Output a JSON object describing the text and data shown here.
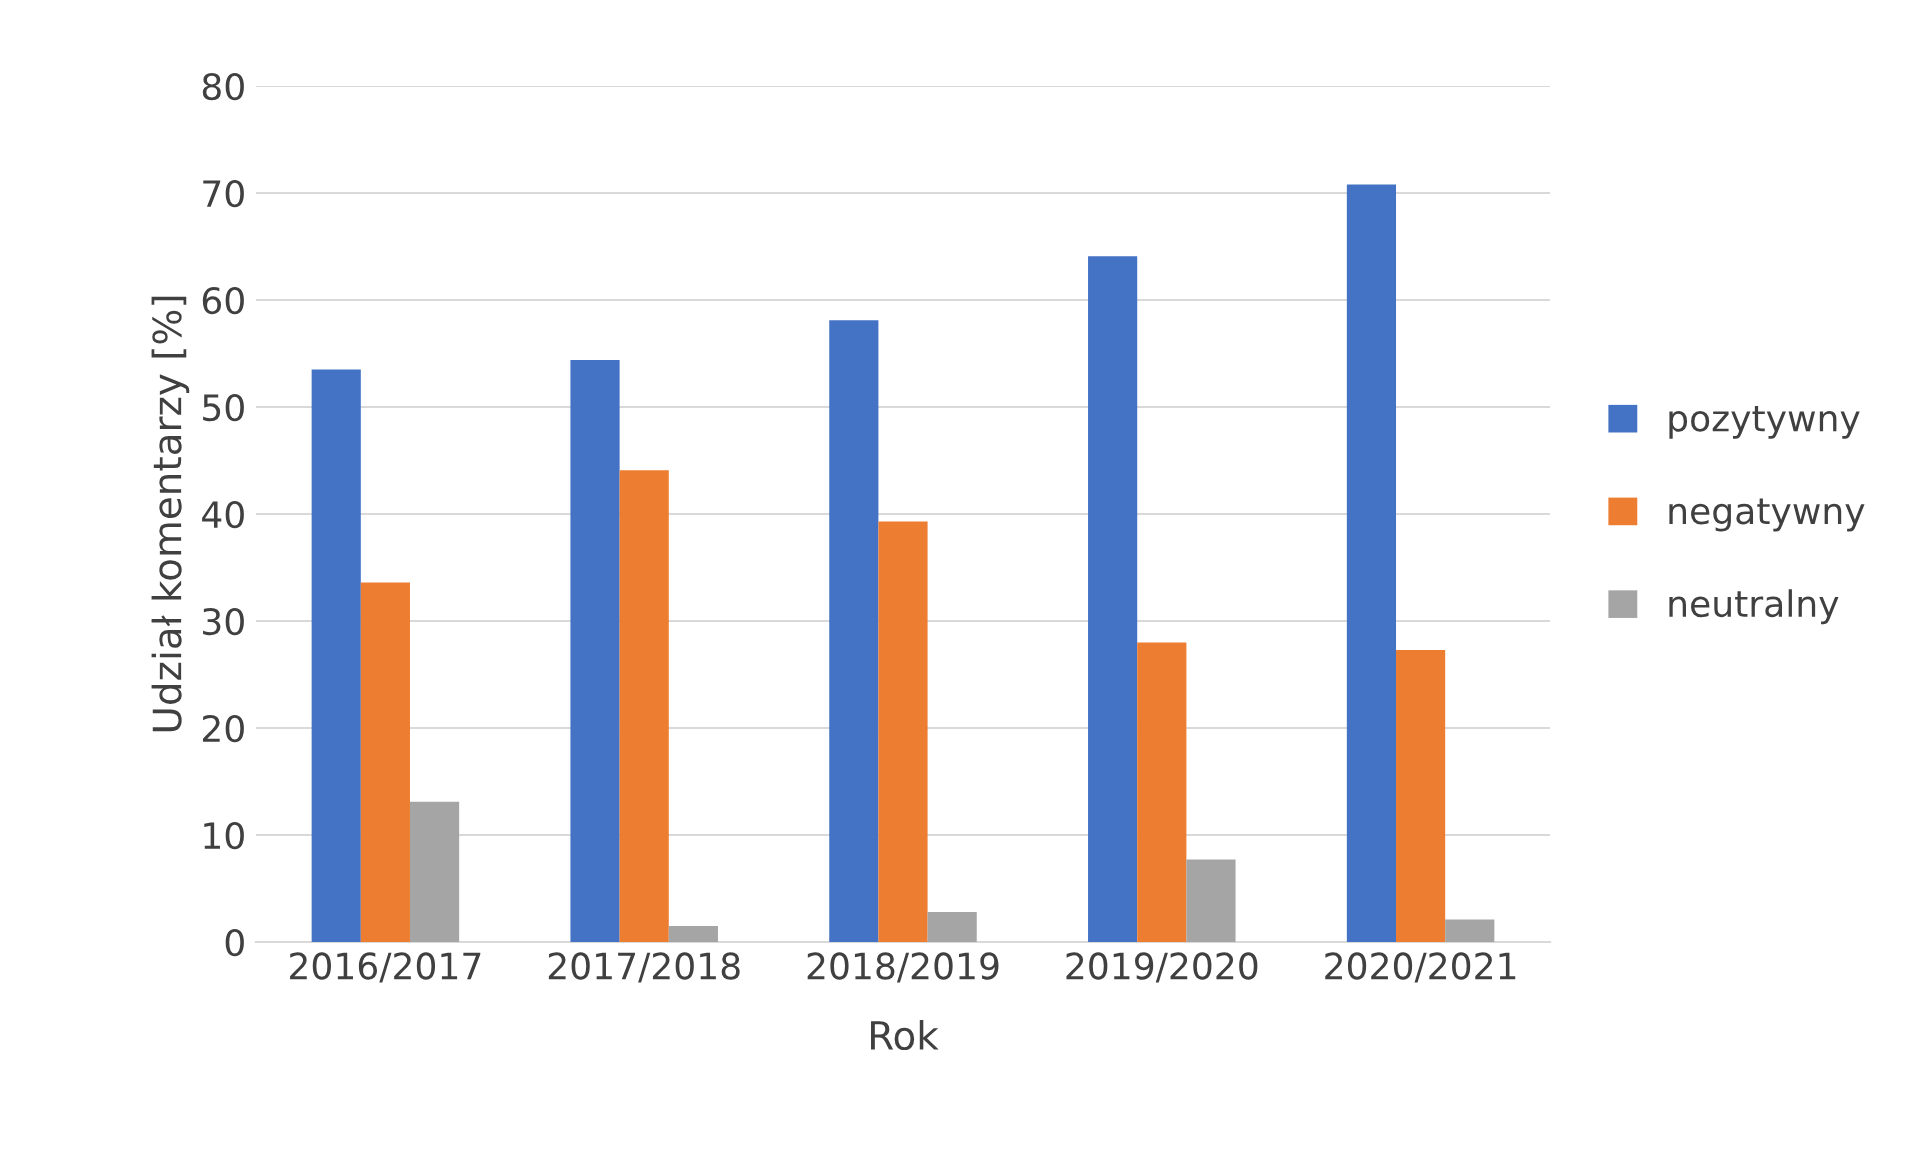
{
  "chart_data": {
    "type": "bar",
    "xlabel": "Rok",
    "ylabel": "Udział komentarzy [%]",
    "categories": [
      "2016/2017",
      "2017/2018",
      "2018/2019",
      "2019/2020",
      "2020/2021"
    ],
    "series": [
      {
        "name": "pozytywny",
        "color": "#4472c4",
        "values": [
          53.5,
          54.4,
          58.1,
          64.1,
          70.8
        ]
      },
      {
        "name": "negatywny",
        "color": "#ed7d31",
        "values": [
          33.6,
          44.1,
          39.3,
          28.0,
          27.3
        ]
      },
      {
        "name": "neutralny",
        "color": "#a5a5a5",
        "values": [
          13.1,
          1.5,
          2.8,
          7.7,
          2.1
        ]
      }
    ],
    "ylim": [
      0,
      80
    ],
    "yticks": [
      0,
      10,
      20,
      30,
      40,
      50,
      60,
      70,
      80
    ],
    "grid": "y",
    "legend": "right"
  }
}
